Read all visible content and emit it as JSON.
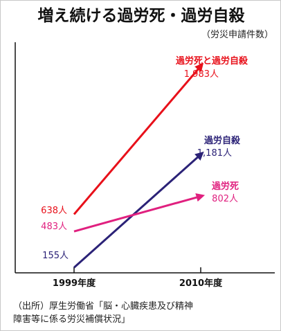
{
  "title": "増え続ける過労死・過労自殺",
  "subtitle": "（労災申請件数）",
  "source": {
    "line1": "（出所）厚生労働省「脳・心臓疾患及び精神",
    "line2": "障害等に係る労災補償状況」"
  },
  "chart_data": {
    "type": "line",
    "x": [
      "1999年度",
      "2010年度"
    ],
    "ylim": [
      0,
      2200
    ],
    "grid": false,
    "series": [
      {
        "name": "過労死と過労自殺",
        "values": [
          638,
          1983
        ],
        "color": "#e8101a",
        "start_label": "638人",
        "end_label": "1,983人"
      },
      {
        "name": "過労自殺",
        "values": [
          155,
          1181
        ],
        "color": "#2b2277",
        "start_label": "155人",
        "end_label": "1,181人"
      },
      {
        "name": "過労死",
        "values": [
          483,
          802
        ],
        "color": "#e0207f",
        "start_label": "483人",
        "end_label": "802人"
      }
    ]
  }
}
